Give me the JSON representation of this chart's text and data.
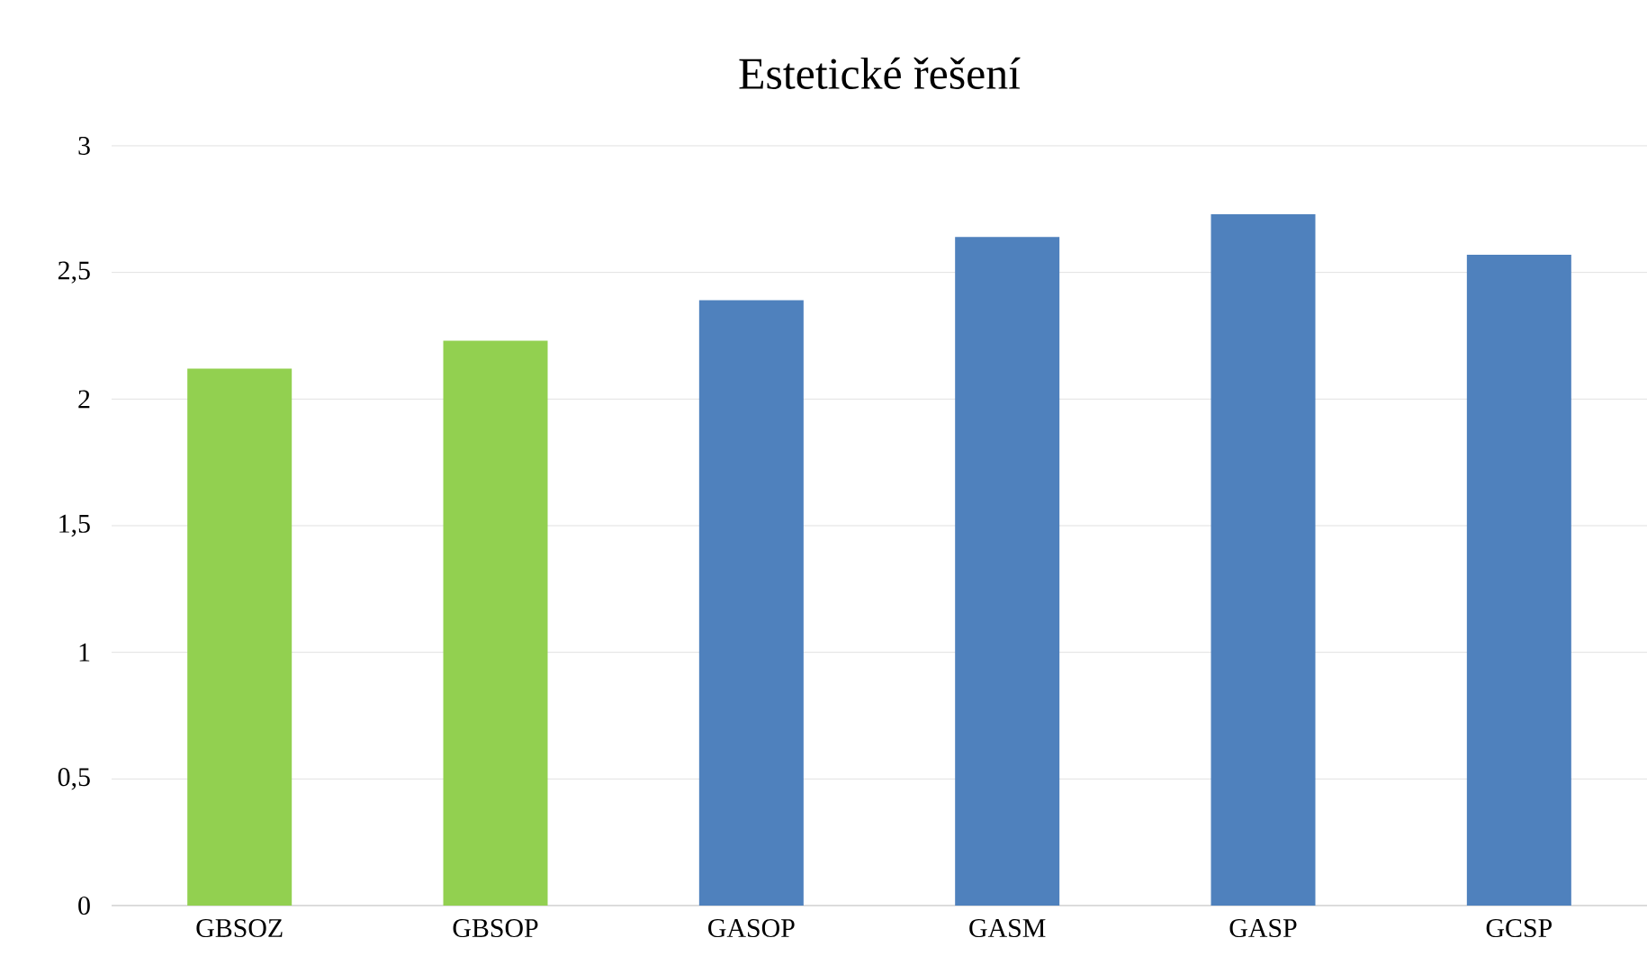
{
  "chart_data": {
    "type": "bar",
    "title": "Estetické řešení",
    "categories": [
      "GBSOZ",
      "GBSOP",
      "GASOP",
      "GASM",
      "GASP",
      "GCSP"
    ],
    "values": [
      2.12,
      2.23,
      2.39,
      2.64,
      2.73,
      2.57
    ],
    "colors": [
      "#92d050",
      "#92d050",
      "#4f81bd",
      "#4f81bd",
      "#4f81bd",
      "#4f81bd"
    ],
    "ylim": [
      0,
      3
    ],
    "yticks": [
      0,
      {
        "value": 0.5,
        "label": "0,5"
      },
      1,
      {
        "value": 1.5,
        "label": "1,5"
      },
      2,
      {
        "value": 2.5,
        "label": "2,5"
      },
      3
    ],
    "grid": "y"
  }
}
